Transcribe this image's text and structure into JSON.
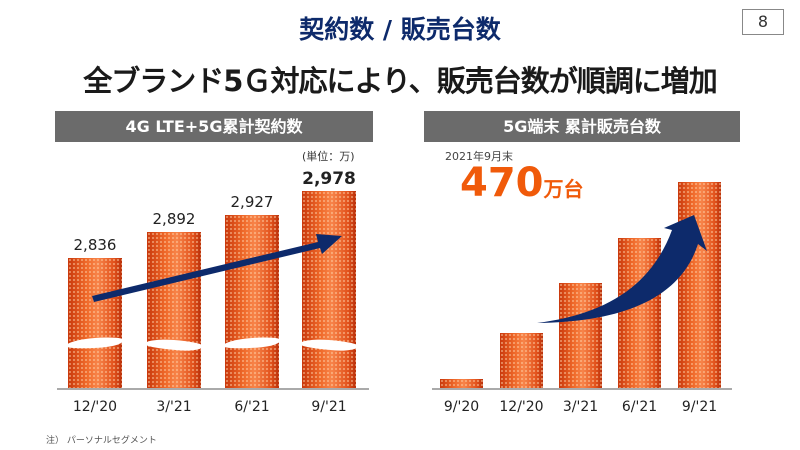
{
  "header": {
    "title": "契約数 / 販売台数",
    "page_number": "8",
    "subtitle": "全ブランド5Ｇ対応により、販売台数が順調に増加"
  },
  "footnote": "注） パーソナルセグメント",
  "chart_data": [
    {
      "type": "bar",
      "title": "4G LTE+5G累計契約数",
      "unit_label": "(単位：万)",
      "categories": [
        "12/'20",
        "3/'21",
        "6/'21",
        "9/'21"
      ],
      "values": [
        2836,
        2892,
        2927,
        2978
      ],
      "value_labels": [
        "2,836",
        "2,892",
        "2,927",
        "2,978"
      ],
      "axis_break": true,
      "trend_arrow": true,
      "colors": {
        "bar": "#e8501a",
        "arrow": "#0d2a6b"
      }
    },
    {
      "type": "bar",
      "title": "5G端末 累計販売台数",
      "annotation_date": "2021年9月末",
      "annotation_value": "470",
      "annotation_unit": "万台",
      "categories": [
        "9/'20",
        "12/'20",
        "3/'21",
        "6/'21",
        "9/'21"
      ],
      "values": [
        22,
        127,
        241,
        343,
        470
      ],
      "ylim": [
        0,
        470
      ],
      "trend_arrow": true,
      "colors": {
        "bar": "#e8501a",
        "arrow": "#0d2a6b",
        "highlight": "#f05a0a"
      }
    }
  ]
}
